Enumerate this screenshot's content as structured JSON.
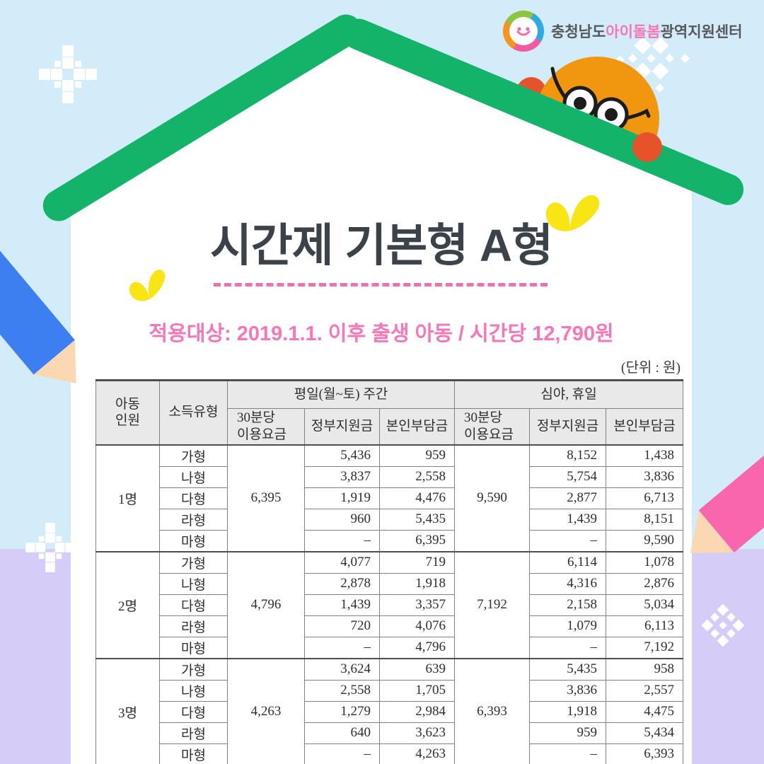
{
  "logo": {
    "prefix": "충청남도",
    "highlight": "아이돌봄",
    "suffix": "광역지원센터"
  },
  "title": "시간제 기본형 A형",
  "subtitle": "적용대상: 2019.1.1. 이후 출생 아동 / 시간당 12,790원",
  "unit_label": "(단위 : 원)",
  "table": {
    "headers": {
      "child_count": "아동\n인원",
      "income_type": "소득유형",
      "day_group": "평일(월~토) 주간",
      "night_group": "심야, 휴일",
      "fee_per_30min": "30분당\n이용요금",
      "gov_support": "정부지원금",
      "self_payment": "본인부담금"
    },
    "groups": [
      {
        "count": "1명",
        "day_fee": "6,395",
        "night_fee": "9,590",
        "rows": [
          {
            "type": "가형",
            "day_gov": "5,436",
            "day_self": "959",
            "night_gov": "8,152",
            "night_self": "1,438"
          },
          {
            "type": "나형",
            "day_gov": "3,837",
            "day_self": "2,558",
            "night_gov": "5,754",
            "night_self": "3,836"
          },
          {
            "type": "다형",
            "day_gov": "1,919",
            "day_self": "4,476",
            "night_gov": "2,877",
            "night_self": "6,713"
          },
          {
            "type": "라형",
            "day_gov": "960",
            "day_self": "5,435",
            "night_gov": "1,439",
            "night_self": "8,151"
          },
          {
            "type": "마형",
            "day_gov": "–",
            "day_self": "6,395",
            "night_gov": "–",
            "night_self": "9,590"
          }
        ]
      },
      {
        "count": "2명",
        "day_fee": "4,796",
        "night_fee": "7,192",
        "rows": [
          {
            "type": "가형",
            "day_gov": "4,077",
            "day_self": "719",
            "night_gov": "6,114",
            "night_self": "1,078"
          },
          {
            "type": "나형",
            "day_gov": "2,878",
            "day_self": "1,918",
            "night_gov": "4,316",
            "night_self": "2,876"
          },
          {
            "type": "다형",
            "day_gov": "1,439",
            "day_self": "3,357",
            "night_gov": "2,158",
            "night_self": "5,034"
          },
          {
            "type": "라형",
            "day_gov": "720",
            "day_self": "4,076",
            "night_gov": "1,079",
            "night_self": "6,113"
          },
          {
            "type": "마형",
            "day_gov": "–",
            "day_self": "4,796",
            "night_gov": "–",
            "night_self": "7,192"
          }
        ]
      },
      {
        "count": "3명",
        "day_fee": "4,263",
        "night_fee": "6,393",
        "rows": [
          {
            "type": "가형",
            "day_gov": "3,624",
            "day_self": "639",
            "night_gov": "5,435",
            "night_self": "958"
          },
          {
            "type": "나형",
            "day_gov": "2,558",
            "day_self": "1,705",
            "night_gov": "3,836",
            "night_self": "2,557"
          },
          {
            "type": "다형",
            "day_gov": "1,279",
            "day_self": "2,984",
            "night_gov": "1,918",
            "night_self": "4,475"
          },
          {
            "type": "라형",
            "day_gov": "640",
            "day_self": "3,623",
            "night_gov": "959",
            "night_self": "5,434"
          },
          {
            "type": "마형",
            "day_gov": "–",
            "day_self": "4,263",
            "night_gov": "–",
            "night_self": "6,393"
          }
        ]
      }
    ]
  },
  "colors": {
    "bg_blue": "#D2ECFA",
    "bg_lavender": "#D5CDF7",
    "roof_green": "#14B36A",
    "accent_pink": "#F876B5",
    "dash_pink": "#F06FAE",
    "title_dark": "#3B4249",
    "butterfly_yellow": "#F9E414",
    "character_orange": "#F0970F",
    "ear_red": "#E6532A",
    "pencil_blue": "#3D7EF0",
    "pencil_pink": "#F867AE"
  }
}
